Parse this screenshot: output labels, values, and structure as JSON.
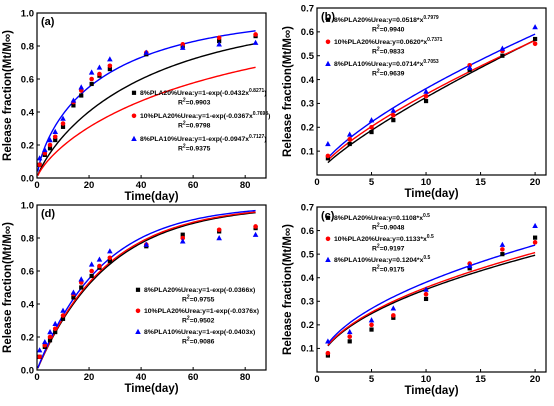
{
  "chart_data": [
    {
      "id": "a",
      "panel_label": "(a)",
      "type": "scatter",
      "xlabel": "Time(day)",
      "ylabel": "Release fraction(Mt/M∞)",
      "xlim": [
        0,
        88
      ],
      "ylim": [
        0,
        1.0
      ],
      "xticks": [
        0,
        20,
        40,
        60,
        80
      ],
      "yticks": [
        0.0,
        0.2,
        0.4,
        0.6,
        0.8,
        1.0
      ],
      "x": [
        1,
        3,
        5,
        7,
        10,
        14,
        17,
        21,
        24,
        28,
        42,
        56,
        70,
        84
      ],
      "series": [
        {
          "name": "8%PLA20%Urea",
          "color": "#000000",
          "marker": "square",
          "values": [
            0.08,
            0.14,
            0.18,
            0.23,
            0.31,
            0.44,
            0.5,
            0.57,
            0.62,
            0.66,
            0.75,
            0.8,
            0.83,
            0.86
          ],
          "fit": {
            "label": "8%PLA20%Urea:y=1-exp(-0.0432x0.8271)",
            "k": 0.0432,
            "n": 0.8271,
            "r2": "R2=0.9903"
          }
        },
        {
          "name": "10%PLA20%Urea",
          "color": "#ff0000",
          "marker": "circle",
          "values": [
            0.08,
            0.15,
            0.2,
            0.25,
            0.33,
            0.46,
            0.53,
            0.6,
            0.63,
            0.68,
            0.76,
            0.81,
            0.85,
            0.87
          ],
          "fit": {
            "label": "10%PLA20%Urea:y=1-exp(-0.0367x0.7698)",
            "k": 0.0367,
            "n": 0.7698,
            "r2": "R2=0.9798"
          }
        },
        {
          "name": "8%PLA10%Urea",
          "color": "#0000ff",
          "marker": "triangle",
          "values": [
            0.12,
            0.17,
            0.23,
            0.28,
            0.36,
            0.47,
            0.55,
            0.64,
            0.67,
            0.72,
            0.76,
            0.79,
            0.81,
            0.82
          ],
          "fit": {
            "label": "8%PLA10%Urea:y=1-exp(-0.0947x0.7127)",
            "k": 0.0947,
            "n": 0.7127,
            "r2": "R2=0.9375"
          }
        }
      ]
    },
    {
      "id": "b",
      "panel_label": "(b)",
      "type": "scatter",
      "xlabel": "Time(day)",
      "ylabel": "Release fraction(Mt/M∞)",
      "xlim": [
        0,
        21
      ],
      "ylim": [
        0,
        0.7
      ],
      "xticks": [
        0,
        5,
        10,
        15,
        20
      ],
      "yticks": [
        0.1,
        0.2,
        0.3,
        0.4,
        0.5,
        0.6,
        0.7
      ],
      "x": [
        1,
        3,
        5,
        7,
        10,
        14,
        17,
        20
      ],
      "series": [
        {
          "name": "8%PLA20%Urea",
          "color": "#000000",
          "marker": "square",
          "values": [
            0.07,
            0.13,
            0.18,
            0.23,
            0.31,
            0.44,
            0.5,
            0.57
          ],
          "fit": {
            "label": "8%PLA20%Urea:y=0.0518*x0.7979",
            "a": 0.0518,
            "n": 0.7979,
            "r2": "R2=0.9940"
          }
        },
        {
          "name": "10%PLA20%Urea",
          "color": "#ff0000",
          "marker": "circle",
          "values": [
            0.08,
            0.15,
            0.2,
            0.25,
            0.33,
            0.46,
            0.52,
            0.55
          ],
          "fit": {
            "label": "10%PLA20%Urea:y=0.0620*x0.7371",
            "a": 0.062,
            "n": 0.7371,
            "r2": "R2=0.9833"
          }
        },
        {
          "name": "8%PLA10%Urea",
          "color": "#0000ff",
          "marker": "triangle",
          "values": [
            0.13,
            0.17,
            0.23,
            0.27,
            0.35,
            0.45,
            0.53,
            0.62
          ],
          "fit": {
            "label": "8%PLA10%Urea:y=0.0714*x0.7053",
            "a": 0.0714,
            "n": 0.7053,
            "r2": "R2=0.9639"
          }
        }
      ]
    },
    {
      "id": "d",
      "panel_label": "(d)",
      "type": "scatter",
      "xlabel": "Time(day)",
      "ylabel": "Release fraction(Mt/M∞)",
      "xlim": [
        0,
        88
      ],
      "ylim": [
        0,
        1.0
      ],
      "xticks": [
        0,
        20,
        40,
        60,
        80
      ],
      "yticks": [
        0.0,
        0.2,
        0.4,
        0.6,
        0.8,
        1.0
      ],
      "x": [
        1,
        3,
        5,
        7,
        10,
        14,
        17,
        21,
        24,
        28,
        42,
        56,
        70,
        84
      ],
      "series": [
        {
          "name": "8%PLA20%Urea",
          "color": "#000000",
          "marker": "square",
          "values": [
            0.08,
            0.14,
            0.18,
            0.23,
            0.31,
            0.44,
            0.5,
            0.57,
            0.62,
            0.66,
            0.75,
            0.82,
            0.84,
            0.86
          ],
          "fit": {
            "label": "8%PLA20%Urea:y=1-exp(-0.0366x)",
            "k": 0.0366,
            "r2": "R2=0.9755"
          }
        },
        {
          "name": "10%PLA20%Urea",
          "color": "#ff0000",
          "marker": "circle",
          "values": [
            0.08,
            0.15,
            0.2,
            0.25,
            0.33,
            0.46,
            0.53,
            0.6,
            0.63,
            0.68,
            0.76,
            0.8,
            0.85,
            0.87
          ],
          "fit": {
            "label": "10%PLA20%Urea:y=1-exp(-0.0376x)",
            "k": 0.0376,
            "r2": "R2=0.9502"
          }
        },
        {
          "name": "8%PLA10%Urea",
          "color": "#0000ff",
          "marker": "triangle",
          "values": [
            0.12,
            0.17,
            0.23,
            0.28,
            0.36,
            0.47,
            0.55,
            0.64,
            0.67,
            0.72,
            0.76,
            0.78,
            0.8,
            0.82
          ],
          "fit": {
            "label": "8%PLA10%Urea:y=1-exp(-0.0403x)",
            "k": 0.0403,
            "r2": "R2=0.9086"
          }
        }
      ]
    },
    {
      "id": "c",
      "panel_label": "(c)",
      "type": "scatter",
      "xlabel": "Time(day)",
      "ylabel": "Release fraction(Mt/M∞)",
      "xlim": [
        0,
        21
      ],
      "ylim": [
        0,
        0.7
      ],
      "xticks": [
        0,
        5,
        10,
        15,
        20
      ],
      "yticks": [
        0.1,
        0.2,
        0.3,
        0.4,
        0.5,
        0.6,
        0.7
      ],
      "x": [
        1,
        3,
        5,
        7,
        10,
        14,
        17,
        20
      ],
      "series": [
        {
          "name": "8%PLA20%Urea",
          "color": "#000000",
          "marker": "square",
          "values": [
            0.07,
            0.13,
            0.18,
            0.23,
            0.31,
            0.44,
            0.5,
            0.57
          ],
          "fit": {
            "label": "8%PLA20%Urea:y=0.1108*x0.5",
            "a": 0.1108,
            "n": 0.5,
            "r2": "R2=0.9048"
          }
        },
        {
          "name": "10%PLA20%Urea",
          "color": "#ff0000",
          "marker": "circle",
          "values": [
            0.08,
            0.15,
            0.2,
            0.24,
            0.33,
            0.46,
            0.52,
            0.55
          ],
          "fit": {
            "label": "10%PLA20%Urea:y=0.1133*x0.5",
            "a": 0.1133,
            "n": 0.5,
            "r2": "R2=0.9197"
          }
        },
        {
          "name": "8%PLA10%Urea",
          "color": "#0000ff",
          "marker": "triangle",
          "values": [
            0.13,
            0.17,
            0.22,
            0.27,
            0.35,
            0.45,
            0.54,
            0.62
          ],
          "fit": {
            "label": "8%PLA10%Urea:y=0.1204*x0.5",
            "a": 0.1204,
            "n": 0.5,
            "r2": "R2=0.9175"
          }
        }
      ]
    }
  ]
}
